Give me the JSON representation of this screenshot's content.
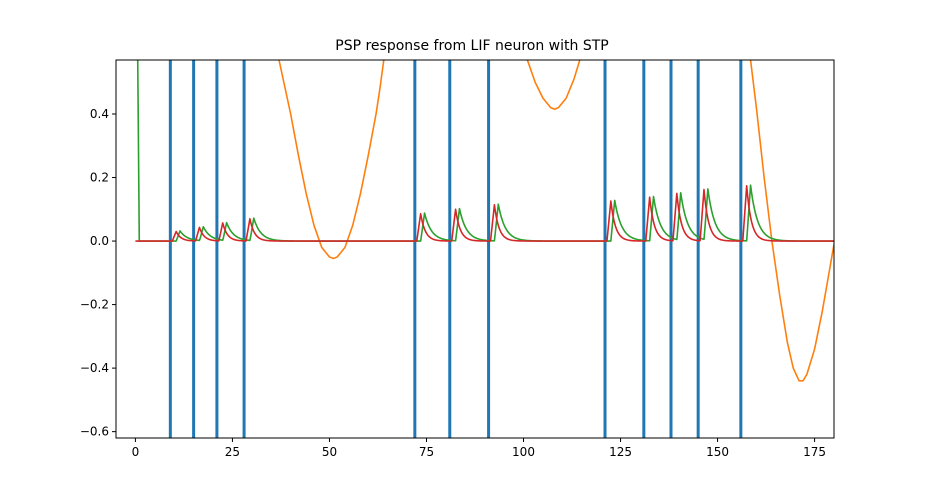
{
  "chart_data": {
    "type": "line",
    "title": "PSP response from LIF neuron with STP",
    "xlabel": "",
    "ylabel": "",
    "xlim": [
      -5,
      180
    ],
    "ylim": [
      -0.62,
      0.57
    ],
    "xticks": [
      0,
      25,
      50,
      75,
      100,
      125,
      150,
      175
    ],
    "yticks": [
      -0.6,
      -0.4,
      -0.2,
      0.0,
      0.2,
      0.4
    ],
    "ytick_labels": [
      "−0.6",
      "−0.4",
      "−0.2",
      "0.0",
      "0.2",
      "0.4"
    ],
    "grid": false,
    "legend": "none",
    "spike_times": {
      "color": "#1f77b4",
      "values": [
        9,
        15,
        21,
        28,
        72,
        81,
        91,
        121,
        131,
        138,
        145,
        156
      ]
    },
    "series": [
      {
        "color": "#ff7f0e",
        "style": "line",
        "points": [
          [
            37,
            0.57
          ],
          [
            40,
            0.4
          ],
          [
            42,
            0.27
          ],
          [
            44,
            0.15
          ],
          [
            46,
            0.05
          ],
          [
            48,
            -0.02
          ],
          [
            50,
            -0.05
          ],
          [
            51,
            -0.055
          ],
          [
            52,
            -0.05
          ],
          [
            54,
            -0.02
          ],
          [
            56,
            0.05
          ],
          [
            58,
            0.15
          ],
          [
            60,
            0.27
          ],
          [
            62,
            0.4
          ],
          [
            63,
            0.48
          ],
          [
            64,
            0.57
          ],
          [
            101,
            0.57
          ],
          [
            103,
            0.5
          ],
          [
            105,
            0.45
          ],
          [
            107,
            0.42
          ],
          [
            108,
            0.415
          ],
          [
            109,
            0.42
          ],
          [
            111,
            0.45
          ],
          [
            113,
            0.51
          ],
          [
            114.5,
            0.57
          ],
          [
            158.5,
            0.57
          ],
          [
            160,
            0.42
          ],
          [
            162,
            0.2
          ],
          [
            164,
            0.0
          ],
          [
            166,
            -0.17
          ],
          [
            168,
            -0.32
          ],
          [
            169.5,
            -0.4
          ],
          [
            171,
            -0.44
          ],
          [
            172,
            -0.44
          ],
          [
            173,
            -0.42
          ],
          [
            175,
            -0.34
          ],
          [
            177,
            -0.22
          ],
          [
            179,
            -0.08
          ],
          [
            180,
            -0.01
          ]
        ]
      },
      {
        "color": "#2ca02c",
        "style": "psp",
        "initial_points": [
          [
            0.6,
            0.57
          ],
          [
            1.0,
            0.0
          ]
        ],
        "peaks": [
          {
            "t": 11.5,
            "amp": 0.032
          },
          {
            "t": 17.5,
            "amp": 0.045
          },
          {
            "t": 23.5,
            "amp": 0.058
          },
          {
            "t": 30.5,
            "amp": 0.072
          },
          {
            "t": 74.5,
            "amp": 0.088
          },
          {
            "t": 83.5,
            "amp": 0.102
          },
          {
            "t": 93.5,
            "amp": 0.116
          },
          {
            "t": 123.5,
            "amp": 0.128
          },
          {
            "t": 133.5,
            "amp": 0.14
          },
          {
            "t": 140.5,
            "amp": 0.152
          },
          {
            "t": 147.5,
            "amp": 0.164
          },
          {
            "t": 158.5,
            "amp": 0.176
          }
        ],
        "tau": 1.8
      },
      {
        "color": "#d62728",
        "style": "psp",
        "peaks": [
          {
            "t": 10.5,
            "amp": 0.03
          },
          {
            "t": 16.5,
            "amp": 0.043
          },
          {
            "t": 22.5,
            "amp": 0.057
          },
          {
            "t": 29.5,
            "amp": 0.07
          },
          {
            "t": 73.5,
            "amp": 0.086
          },
          {
            "t": 82.5,
            "amp": 0.1
          },
          {
            "t": 92.5,
            "amp": 0.114
          },
          {
            "t": 122.5,
            "amp": 0.126
          },
          {
            "t": 132.5,
            "amp": 0.138
          },
          {
            "t": 139.5,
            "amp": 0.15
          },
          {
            "t": 146.5,
            "amp": 0.162
          },
          {
            "t": 157.5,
            "amp": 0.174
          }
        ],
        "tau": 1.2
      }
    ]
  }
}
